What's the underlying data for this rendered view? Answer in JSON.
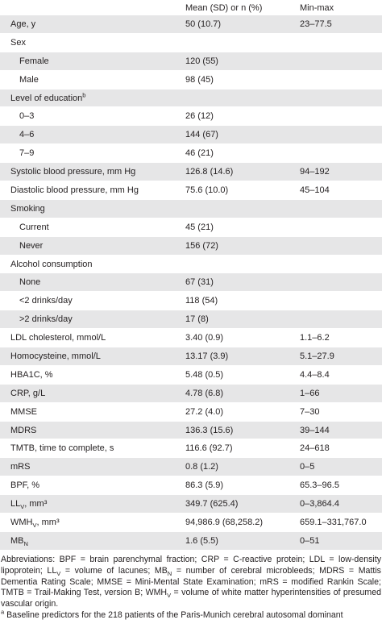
{
  "table": {
    "header": [
      "Mean (SD) or n (%)",
      "Min-max"
    ],
    "rows": [
      {
        "label": "Age, y",
        "mean": "50 (10.7)",
        "range": "23–77.5"
      },
      {
        "label": "Sex"
      },
      {
        "label": "Female",
        "indent": true,
        "mean": "120 (55)"
      },
      {
        "label": "Male",
        "indent": true,
        "mean": "98 (45)"
      },
      {
        "label": "Level of education",
        "sup": "b"
      },
      {
        "label": "0–3",
        "indent": true,
        "mean": "26 (12)"
      },
      {
        "label": "4–6",
        "indent": true,
        "mean": "144 (67)"
      },
      {
        "label": "7–9",
        "indent": true,
        "mean": "46 (21)"
      },
      {
        "label": "Systolic blood pressure, mm Hg",
        "mean": "126.8 (14.6)",
        "range": "94–192"
      },
      {
        "label": "Diastolic blood pressure, mm Hg",
        "mean": "75.6 (10.0)",
        "range": "45–104"
      },
      {
        "label": "Smoking"
      },
      {
        "label": "Current",
        "indent": true,
        "mean": "45 (21)"
      },
      {
        "label": "Never",
        "indent": true,
        "mean": "156 (72)"
      },
      {
        "label": "Alcohol consumption"
      },
      {
        "label": "None",
        "indent": true,
        "mean": "67 (31)"
      },
      {
        "label": "<2 drinks/day",
        "indent": true,
        "mean": "118 (54)"
      },
      {
        "label": ">2 drinks/day",
        "indent": true,
        "mean": "17 (8)"
      },
      {
        "label": "LDL cholesterol, mmol/L",
        "mean": "3.40 (0.9)",
        "range": "1.1–6.2"
      },
      {
        "label": "Homocysteine, mmol/L",
        "mean": "13.17 (3.9)",
        "range": "5.1–27.9"
      },
      {
        "label": "HBA1C, %",
        "mean": "5.48 (0.5)",
        "range": "4.4–8.4"
      },
      {
        "label": "CRP, g/L",
        "mean": "4.78 (6.8)",
        "range": "1–66"
      },
      {
        "label": "MMSE",
        "mean": "27.2 (4.0)",
        "range": "7–30"
      },
      {
        "label": "MDRS",
        "mean": "136.3 (15.6)",
        "range": "39–144"
      },
      {
        "label": "TMTB, time to complete, s",
        "mean": "116.6 (92.7)",
        "range": "24–618"
      },
      {
        "label": "mRS",
        "mean": "0.8 (1.2)",
        "range": "0–5"
      },
      {
        "label": "BPF, %",
        "mean": "86.3 (5.9)",
        "range": "65.3–96.5"
      },
      {
        "label": "LL",
        "sub": "V",
        "suffix": ", mm³",
        "mean": "349.7 (625.4)",
        "range": "0–3,864.4"
      },
      {
        "label": "WMH",
        "sub": "V",
        "suffix": ", mm³",
        "mean": "94,986.9 (68,258.2)",
        "range": "659.1–331,767.0"
      },
      {
        "label": "MB",
        "sub": "N",
        "mean": "1.6 (5.5)",
        "range": "0–51"
      }
    ]
  },
  "footnotes": {
    "abbreviations": [
      {
        "text": "Abbreviations: BPF = brain parenchymal fraction; CRP = C-reactive protein; LDL = low-density lipoprotein; LL"
      },
      {
        "sub": "V"
      },
      {
        "text": " = volume of lacunes; MB"
      },
      {
        "sub": "N"
      },
      {
        "text": " = number of cerebral microbleeds; MDRS = Mattis Dementia Rating Scale; MMSE = Mini-Mental State Examination; mRS = modified Rankin Scale; TMTB = Trail-Making Test, version B; WMH"
      },
      {
        "sub": "V"
      },
      {
        "text": " = volume of white matter hyperintensities of presumed vascular origin."
      }
    ],
    "note_a": {
      "sup": "a",
      "text": " Baseline predictors for the 218 patients of the Paris-Munich cerebral autosomal dominant"
    }
  }
}
